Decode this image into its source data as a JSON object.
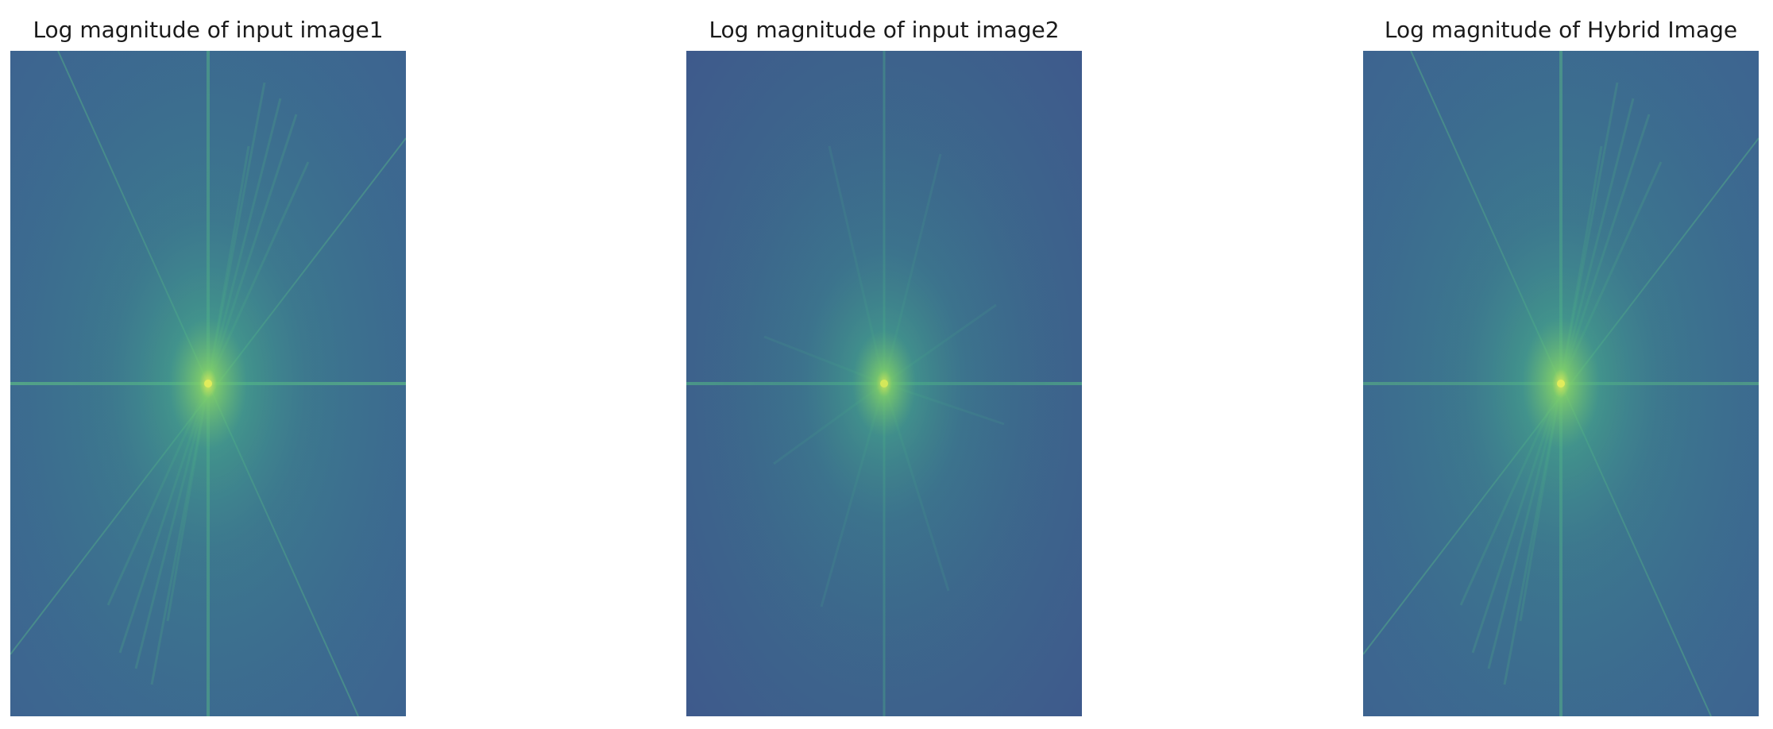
{
  "figure": {
    "panels": [
      {
        "id": "image1",
        "title": "Log magnitude of input image1",
        "colormap": "viridis",
        "background_color": "#3b6a8e",
        "edge_color": "#3d6490",
        "streak_color": "#4fae85",
        "center_color": "#d6e85a"
      },
      {
        "id": "image2",
        "title": "Log magnitude of input image2",
        "colormap": "viridis",
        "background_color": "#3a5f8c",
        "edge_color": "#3e5a8c",
        "streak_color": "#48a488",
        "center_color": "#c8e35a"
      },
      {
        "id": "hybrid",
        "title": "Log magnitude of Hybrid Image",
        "colormap": "viridis",
        "background_color": "#3b6a8e",
        "edge_color": "#3d6490",
        "streak_color": "#4fae85",
        "center_color": "#d6e85a"
      }
    ]
  }
}
